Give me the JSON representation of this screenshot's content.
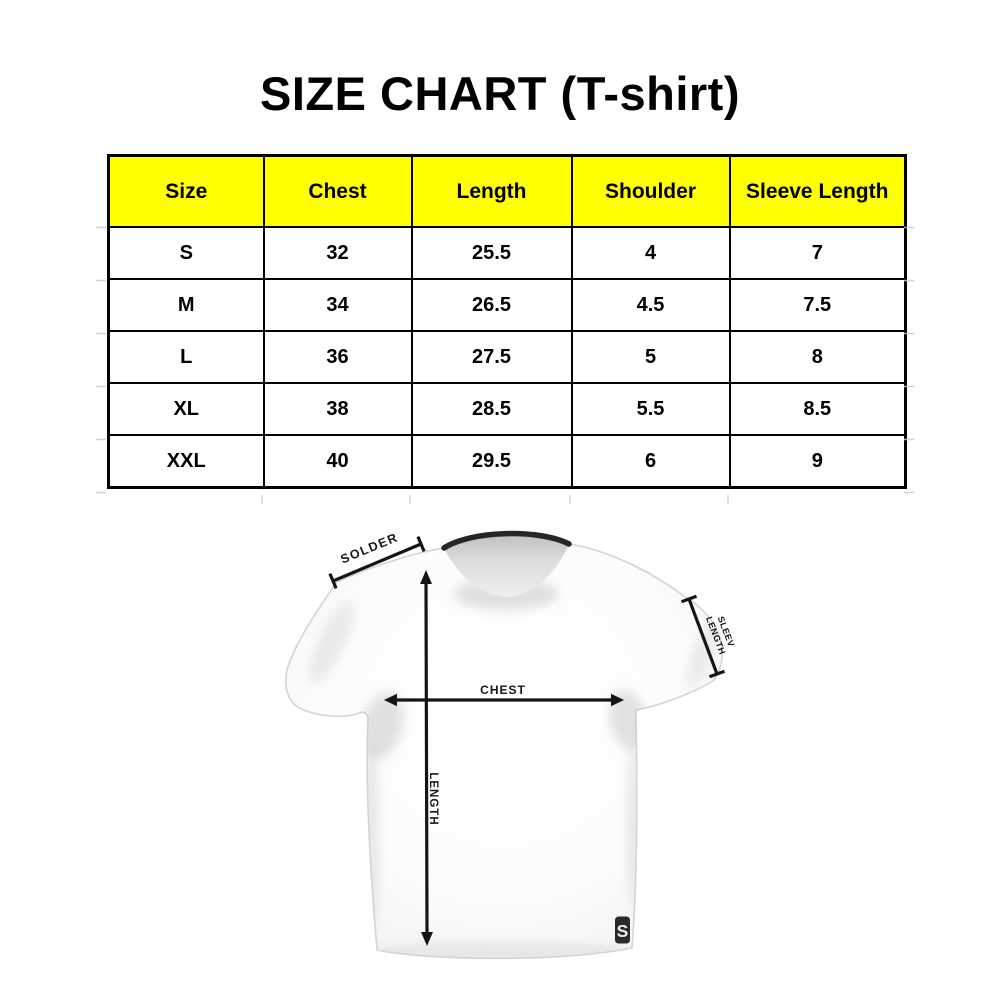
{
  "title": "SIZE CHART (T-shirt)",
  "chart_data": {
    "type": "table",
    "title": "SIZE CHART (T-shirt)",
    "columns": [
      "Size",
      "Chest",
      "Length",
      "Shoulder",
      "Sleeve Length"
    ],
    "rows": [
      [
        "S",
        "32",
        "25.5",
        "4",
        "7"
      ],
      [
        "M",
        "34",
        "26.5",
        "4.5",
        "7.5"
      ],
      [
        "L",
        "36",
        "27.5",
        "5",
        "8"
      ],
      [
        "XL",
        "38",
        "28.5",
        "5.5",
        "8.5"
      ],
      [
        "XXL",
        "40",
        "29.5",
        "6",
        "9"
      ]
    ]
  },
  "diagram": {
    "shoulder_label": "SOLDER",
    "sleeve_label_line1": "SLEEV",
    "sleeve_label_line2": "LENGTH",
    "chest_label": "CHEST",
    "length_label": "LENGTH",
    "logo_letter": "S"
  },
  "colors": {
    "header_bg": "#FFFF00",
    "table_border": "#000000",
    "text": "#000000",
    "arrow": "#151515",
    "collar": "#262626",
    "shirt": "#fbfbfb"
  }
}
